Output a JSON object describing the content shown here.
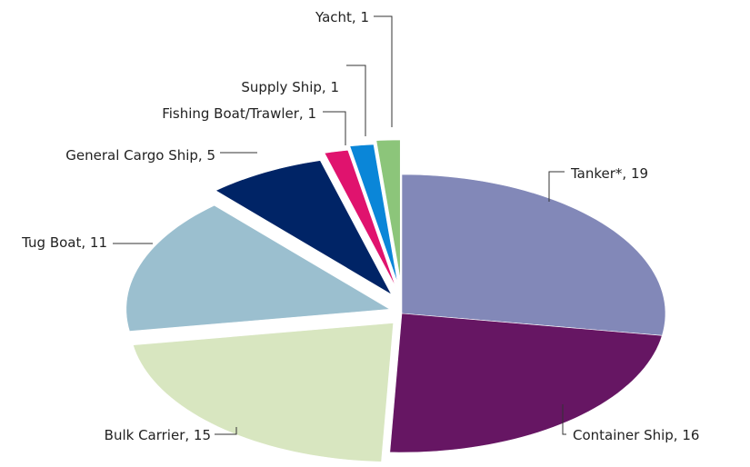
{
  "chart_data": {
    "type": "pie",
    "title": "",
    "slices": [
      {
        "name": "Tanker*",
        "value": 19,
        "color": "#8288b8",
        "text": "Tanker*, 19"
      },
      {
        "name": "Container Ship",
        "value": 16,
        "color": "#661663",
        "text": "Container Ship, 16"
      },
      {
        "name": "Bulk Carrier",
        "value": 15,
        "color": "#d8e6c0",
        "text": "Bulk Carrier, 15"
      },
      {
        "name": "Tug Boat",
        "value": 11,
        "color": "#9bbfcf",
        "text": "Tug Boat, 11"
      },
      {
        "name": "General Cargo Ship",
        "value": 5,
        "color": "#002466",
        "text": "General Cargo Ship, 5"
      },
      {
        "name": "Fishing Boat/Trawler",
        "value": 1,
        "color": "#e0136e",
        "text": "Fishing Boat/Trawler, 1"
      },
      {
        "name": "Supply Ship",
        "value": 1,
        "color": "#0a86d8",
        "text": "Supply Ship, 1"
      },
      {
        "name": "Yacht",
        "value": 1,
        "color": "#8cc57a",
        "text": "Yacht, 1"
      }
    ],
    "legend": "none",
    "style": "exploded-3d-pie"
  }
}
